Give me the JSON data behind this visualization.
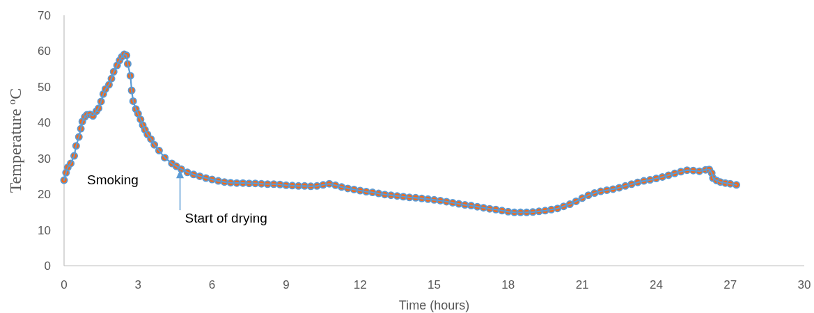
{
  "chart_data": {
    "type": "line",
    "xlabel": "Time (hours)",
    "ylabel": "Temperature $^{o}$C",
    "xlim": [
      0,
      30
    ],
    "xticks": [
      0,
      3,
      6,
      9,
      12,
      15,
      18,
      21,
      24,
      27,
      30
    ],
    "ylim": [
      0,
      70
    ],
    "yticks": [
      0,
      10,
      20,
      30,
      40,
      50,
      60,
      70
    ],
    "annotations": [
      "Smoking",
      {
        "text": "Start of drying",
        "x": 4.7,
        "y": 27
      }
    ],
    "series": [
      {
        "type": "scatter",
        "color": "#f26a1b",
        "marker": "circle",
        "x": [
          0,
          0.08,
          0.15,
          0.27,
          0.41,
          0.49,
          0.6,
          0.68,
          0.74,
          0.84,
          0.93,
          1.05,
          1.17,
          1.31,
          1.4,
          1.5,
          1.59,
          1.68,
          1.82,
          1.92,
          2.01,
          2.15,
          2.25,
          2.34,
          2.44,
          2.53,
          2.58,
          2.69,
          2.74,
          2.8,
          2.91,
          3.0,
          3.1,
          3.19,
          3.28,
          3.38,
          3.52,
          3.66,
          3.85,
          4.08,
          4.37,
          4.55,
          4.75,
          5,
          5.25,
          5.5,
          5.75,
          6,
          6.25,
          6.5,
          6.75,
          7,
          7.25,
          7.5,
          7.75,
          8,
          8.25,
          8.5,
          8.75,
          9,
          9.25,
          9.5,
          9.75,
          10,
          10.25,
          10.5,
          10.75,
          11,
          11.25,
          11.5,
          11.75,
          12,
          12.25,
          12.5,
          12.75,
          13,
          13.25,
          13.5,
          13.75,
          14,
          14.25,
          14.5,
          14.75,
          15,
          15.25,
          15.5,
          15.75,
          16,
          16.25,
          16.5,
          16.75,
          17,
          17.25,
          17.5,
          17.75,
          18,
          18.25,
          18.5,
          18.75,
          19,
          19.25,
          19.5,
          19.75,
          20,
          20.25,
          20.5,
          20.75,
          21,
          21.25,
          21.5,
          21.75,
          22,
          22.25,
          22.5,
          22.75,
          23,
          23.25,
          23.5,
          23.75,
          24,
          24.25,
          24.5,
          24.75,
          25,
          25.25,
          25.5,
          25.75,
          26,
          26.15,
          26.25,
          26.3,
          26.45,
          26.6,
          26.8,
          27,
          27.25
        ],
        "values": [
          23.9,
          26,
          27.5,
          28.6,
          30.7,
          33.5,
          36,
          38.3,
          40.3,
          41.6,
          42.2,
          42.3,
          41.9,
          43.2,
          44,
          45.9,
          48,
          49.4,
          50.6,
          52.3,
          54.2,
          56,
          57.4,
          58.4,
          59.1,
          58.8,
          56.4,
          53.1,
          49,
          46,
          43.8,
          42.5,
          40.9,
          39.3,
          38,
          36.7,
          35.4,
          33.8,
          32.2,
          30.2,
          28.6,
          27.8,
          27.0,
          26.1,
          25.5,
          25.0,
          24.5,
          24.1,
          23.7,
          23.4,
          23.2,
          23.1,
          23.1,
          23.0,
          23.0,
          22.9,
          22.8,
          22.8,
          22.7,
          22.5,
          22.4,
          22.3,
          22.3,
          22.2,
          22.3,
          22.6,
          22.9,
          22.5,
          22.0,
          21.6,
          21.3,
          21.0,
          20.7,
          20.5,
          20.2,
          19.9,
          19.7,
          19.5,
          19.3,
          19.1,
          19.0,
          18.8,
          18.6,
          18.4,
          18.2,
          17.9,
          17.6,
          17.3,
          17.0,
          16.8,
          16.5,
          16.2,
          15.9,
          15.7,
          15.4,
          15.1,
          14.9,
          14.9,
          14.9,
          15.0,
          15.2,
          15.4,
          15.7,
          16.0,
          16.6,
          17.2,
          18.0,
          18.9,
          19.7,
          20.3,
          20.8,
          21.1,
          21.4,
          21.8,
          22.3,
          22.8,
          23.3,
          23.7,
          24.0,
          24.4,
          24.8,
          25.3,
          25.8,
          26.3,
          26.7,
          26.6,
          26.4,
          26.8,
          26.9,
          25.9,
          24.5,
          23.8,
          23.4,
          23.1,
          22.9,
          22.6
        ]
      },
      {
        "color": "#5b9bd5",
        "x": [
          0,
          0.08,
          0.15,
          0.27,
          0.41,
          0.49,
          0.6,
          0.68,
          0.74,
          0.84,
          0.93,
          1.05,
          1.17,
          1.31,
          1.4,
          1.5,
          1.59,
          1.68,
          1.82,
          1.92,
          2.01,
          2.15,
          2.25,
          2.34,
          2.44,
          2.53,
          2.58,
          2.69,
          2.74,
          2.8,
          2.91,
          3.0,
          3.1,
          3.19,
          3.28,
          3.38,
          3.52,
          3.66,
          3.85,
          4.08,
          4.37,
          4.55,
          4.75,
          5,
          5.25,
          5.5,
          5.75,
          6,
          6.25,
          6.5,
          6.75,
          7,
          7.25,
          7.5,
          7.75,
          8,
          8.25,
          8.5,
          8.75,
          9,
          9.25,
          9.5,
          9.75,
          10,
          10.25,
          10.5,
          10.75,
          11,
          11.25,
          11.5,
          11.75,
          12,
          12.25,
          12.5,
          12.75,
          13,
          13.25,
          13.5,
          13.75,
          14,
          14.25,
          14.5,
          14.75,
          15,
          15.25,
          15.5,
          15.75,
          16,
          16.25,
          16.5,
          16.75,
          17,
          17.25,
          17.5,
          17.75,
          18,
          18.25,
          18.5,
          18.75,
          19,
          19.25,
          19.5,
          19.75,
          20,
          20.25,
          20.5,
          20.75,
          21,
          21.25,
          21.5,
          21.75,
          22,
          22.25,
          22.5,
          22.75,
          23,
          23.25,
          23.5,
          23.75,
          24,
          24.25,
          24.5,
          24.75,
          25,
          25.25,
          25.5,
          25.75,
          26,
          26.15,
          26.25,
          26.3,
          26.45,
          26.6,
          26.8,
          27,
          27.25
        ],
        "values": [
          23.9,
          26,
          27.5,
          28.6,
          30.7,
          33.5,
          36,
          38.3,
          40.3,
          41.6,
          42.2,
          42.3,
          41.9,
          43.2,
          44,
          45.9,
          48,
          49.4,
          50.6,
          52.3,
          54.2,
          56,
          57.4,
          58.4,
          59.1,
          58.8,
          56.4,
          53.1,
          49,
          46,
          43.8,
          42.5,
          40.9,
          39.3,
          38,
          36.7,
          35.4,
          33.8,
          32.2,
          30.2,
          28.6,
          27.8,
          27.0,
          26.1,
          25.5,
          25.0,
          24.5,
          24.1,
          23.7,
          23.4,
          23.2,
          23.1,
          23.1,
          23.0,
          23.0,
          22.9,
          22.8,
          22.8,
          22.7,
          22.5,
          22.4,
          22.3,
          22.3,
          22.2,
          22.3,
          22.6,
          22.9,
          22.5,
          22.0,
          21.6,
          21.3,
          21.0,
          20.7,
          20.5,
          20.2,
          19.9,
          19.7,
          19.5,
          19.3,
          19.1,
          19.0,
          18.8,
          18.6,
          18.4,
          18.2,
          17.9,
          17.6,
          17.3,
          17.0,
          16.8,
          16.5,
          16.2,
          15.9,
          15.7,
          15.4,
          15.1,
          14.9,
          14.9,
          14.9,
          15.0,
          15.2,
          15.4,
          15.7,
          16.0,
          16.6,
          17.2,
          18.0,
          18.9,
          19.7,
          20.3,
          20.8,
          21.1,
          21.4,
          21.8,
          22.3,
          22.8,
          23.3,
          23.7,
          24.0,
          24.4,
          24.8,
          25.3,
          25.8,
          26.3,
          26.7,
          26.6,
          26.4,
          26.8,
          26.9,
          25.9,
          24.5,
          23.8,
          23.4,
          23.1,
          22.9,
          22.6
        ]
      }
    ]
  }
}
